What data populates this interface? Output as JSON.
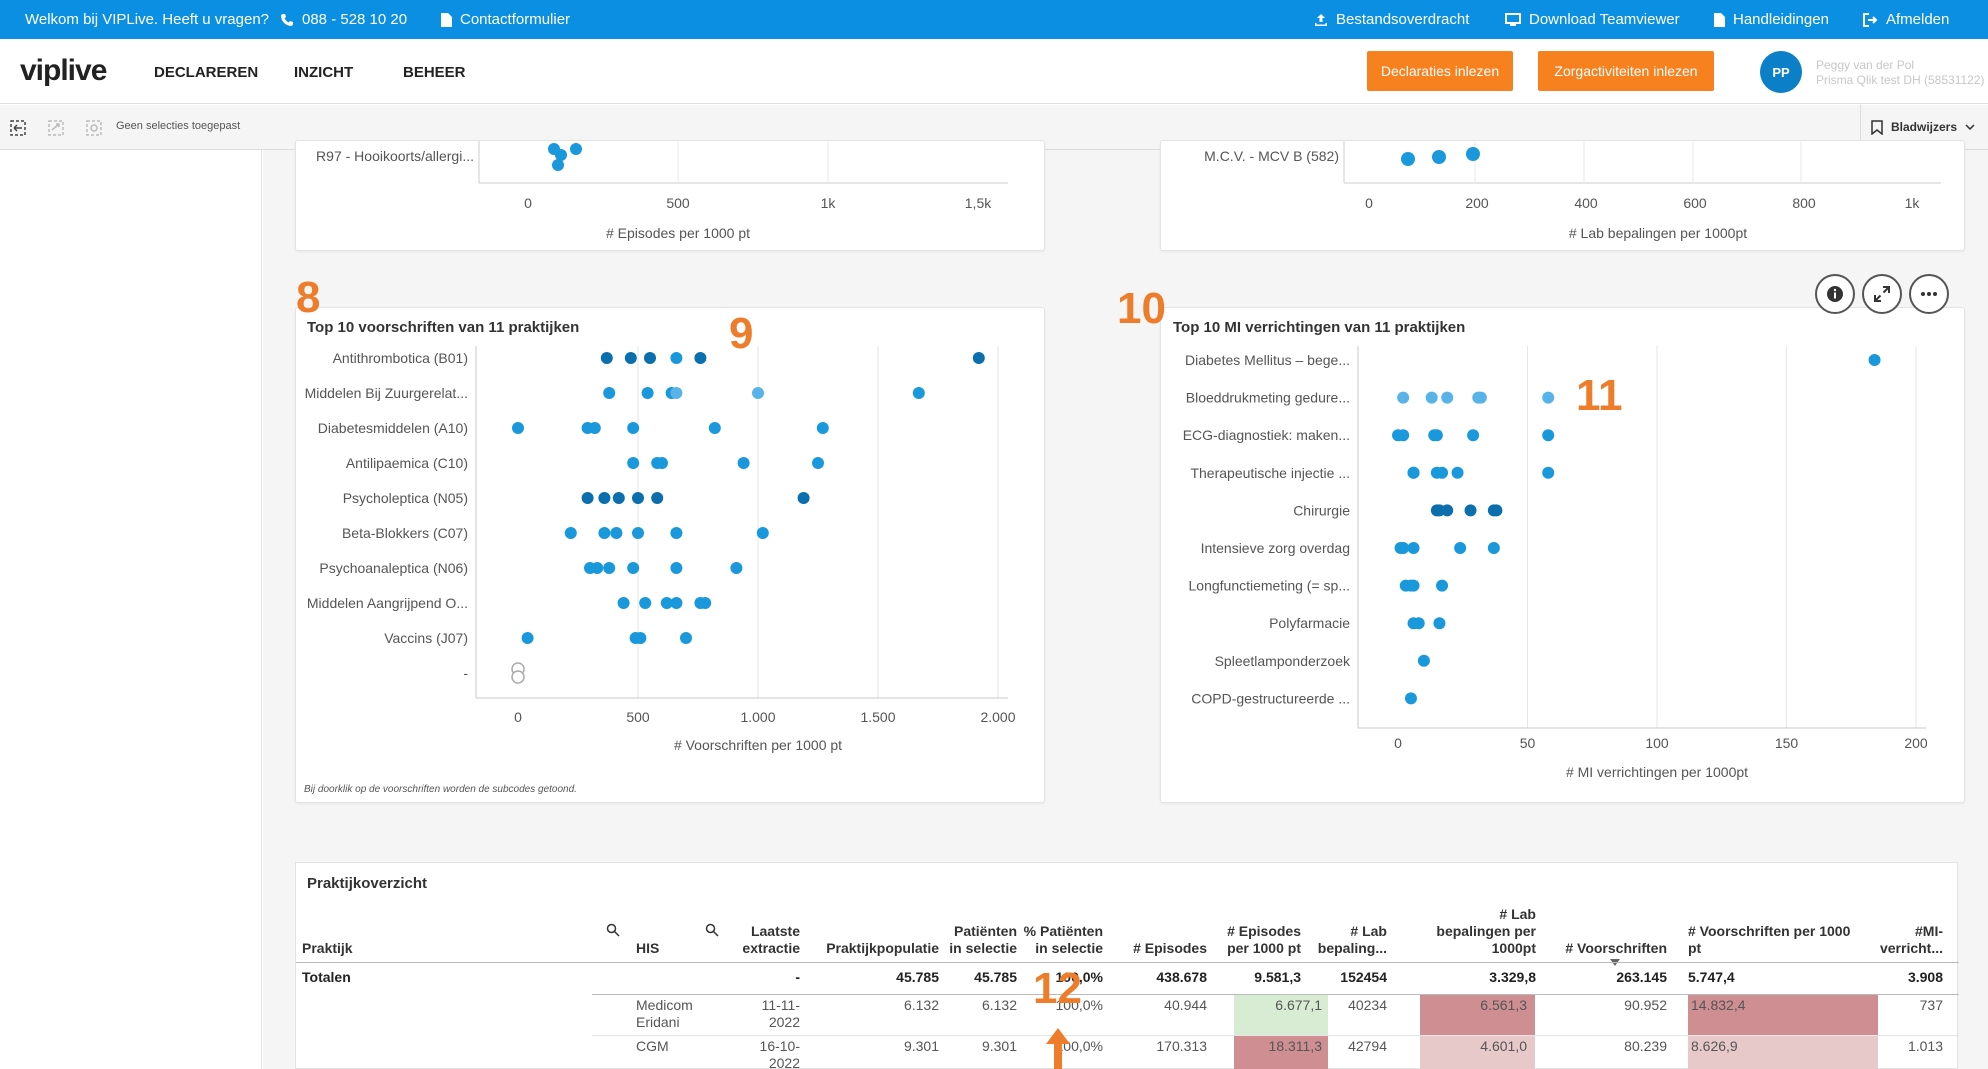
{
  "topbar": {
    "welcome": "Welkom bij VIPLive. Heeft u vragen?",
    "phone": "088 - 528 10 20",
    "contact": "Contactformulier",
    "transfer": "Bestandsoverdracht",
    "teamviewer": "Download Teamviewer",
    "manuals": "Handleidingen",
    "logout": "Afmelden"
  },
  "nav": {
    "logo": "viplive",
    "menu": [
      "DECLAREREN",
      "INZICHT",
      "BEHEER"
    ],
    "btn_declarations": "Declaraties inlezen",
    "btn_care": "Zorgactiviteiten inlezen",
    "avatar": "PP",
    "user_name": "Peggy van der Pol",
    "user_org": "Prisma Qlik test DH (58531122)"
  },
  "selections": {
    "none": "Geen selecties toegepast",
    "bookmarks": "Bladwijzers"
  },
  "colors": {
    "accent": "#0a8fe2",
    "orange": "#f7801f",
    "dot_dark": "#0b6fad",
    "dot_mid": "#1a98dc",
    "dot_light": "#58b4e8",
    "annotation": "#ee7d2b",
    "heat_red": "#cf8f92",
    "heat_red_light": "#e8c9ca",
    "heat_green": "#d8ecd4"
  },
  "annotations": [
    "8",
    "9",
    "10",
    "11",
    "12"
  ],
  "card_top_left": {
    "row_label": "R97 - Hooikoorts/allergi...",
    "ticks": [
      "0",
      "500",
      "1k",
      "1,5k"
    ],
    "xlabel": "# Episodes per 1000 pt"
  },
  "card_top_right": {
    "row_label": "M.C.V. - MCV B  (582)",
    "ticks": [
      "0",
      "200",
      "400",
      "600",
      "800",
      "1k"
    ],
    "xlabel": "# Lab bepalingen per 1000pt"
  },
  "chart_data": [
    {
      "type": "scatter",
      "title": "Top 10 voorschriften van 11 praktijken",
      "xlabel": "# Voorschriften per 1000 pt",
      "ylabel": "",
      "xlim": [
        0,
        2000
      ],
      "xticks": [
        "0",
        "500",
        "1.000",
        "1.500",
        "2.000"
      ],
      "categories": [
        "Antithrombotica (B01)",
        "Middelen Bij Zuurgerelat...",
        "Diabetesmiddelen (A10)",
        "Antilipaemica (C10)",
        "Psycholeptica (N05)",
        "Beta-Blokkers (C07)",
        "Psychoanaleptica (N06)",
        "Middelen Aangrijpend O...",
        "Vaccins (J07)",
        "-"
      ],
      "points": [
        [
          370,
          0,
          0
        ],
        [
          470,
          0,
          0
        ],
        [
          550,
          0,
          0
        ],
        [
          660,
          0,
          1
        ],
        [
          760,
          0,
          0
        ],
        [
          1920,
          0,
          0
        ],
        [
          380,
          1,
          1
        ],
        [
          540,
          1,
          1
        ],
        [
          640,
          1,
          1
        ],
        [
          660,
          1,
          2
        ],
        [
          1000,
          1,
          2
        ],
        [
          1670,
          1,
          1
        ],
        [
          0,
          2,
          1
        ],
        [
          290,
          2,
          1
        ],
        [
          320,
          2,
          1
        ],
        [
          480,
          2,
          1
        ],
        [
          820,
          2,
          1
        ],
        [
          1270,
          2,
          1
        ],
        [
          480,
          3,
          1
        ],
        [
          580,
          3,
          1
        ],
        [
          600,
          3,
          1
        ],
        [
          940,
          3,
          1
        ],
        [
          1250,
          3,
          1
        ],
        [
          290,
          4,
          0
        ],
        [
          360,
          4,
          0
        ],
        [
          420,
          4,
          0
        ],
        [
          500,
          4,
          0
        ],
        [
          580,
          4,
          0
        ],
        [
          1190,
          4,
          0
        ],
        [
          220,
          5,
          1
        ],
        [
          360,
          5,
          1
        ],
        [
          410,
          5,
          1
        ],
        [
          500,
          5,
          1
        ],
        [
          660,
          5,
          1
        ],
        [
          1020,
          5,
          1
        ],
        [
          300,
          6,
          1
        ],
        [
          330,
          6,
          1
        ],
        [
          380,
          6,
          1
        ],
        [
          480,
          6,
          1
        ],
        [
          660,
          6,
          1
        ],
        [
          910,
          6,
          1
        ],
        [
          440,
          7,
          1
        ],
        [
          530,
          7,
          1
        ],
        [
          620,
          7,
          1
        ],
        [
          660,
          7,
          1
        ],
        [
          760,
          7,
          1
        ],
        [
          780,
          7,
          1
        ],
        [
          40,
          8,
          1
        ],
        [
          490,
          8,
          1
        ],
        [
          510,
          8,
          1
        ],
        [
          700,
          8,
          1
        ],
        [
          0,
          9,
          3
        ]
      ],
      "footnote": "Bij doorklik op de voorschriften worden de subcodes getoond."
    },
    {
      "type": "scatter",
      "title": "Top 10 MI verrichtingen van 11 praktijken",
      "xlabel": "# MI verrichtingen per 1000pt",
      "ylabel": "",
      "xlim": [
        0,
        200
      ],
      "xticks": [
        "0",
        "50",
        "100",
        "150",
        "200"
      ],
      "categories": [
        "Diabetes Mellitus – bege...",
        "Bloeddrukmeting gedure...",
        "ECG-diagnostiek: maken...",
        "Therapeutische injectie ...",
        "Chirurgie",
        "Intensieve zorg overdag",
        "Longfunctiemeting (= sp...",
        "Polyfarmacie",
        "Spleetlamponderzoek",
        "COPD-gestructureerde ..."
      ],
      "points": [
        [
          184,
          0,
          1
        ],
        [
          2,
          1,
          2
        ],
        [
          13,
          1,
          2
        ],
        [
          19,
          1,
          2
        ],
        [
          31,
          1,
          2
        ],
        [
          32,
          1,
          2
        ],
        [
          58,
          1,
          2
        ],
        [
          0,
          2,
          1
        ],
        [
          2,
          2,
          1
        ],
        [
          14,
          2,
          1
        ],
        [
          15,
          2,
          1
        ],
        [
          29,
          2,
          1
        ],
        [
          58,
          2,
          1
        ],
        [
          6,
          3,
          1
        ],
        [
          6,
          3,
          1
        ],
        [
          15,
          3,
          1
        ],
        [
          17,
          3,
          1
        ],
        [
          23,
          3,
          1
        ],
        [
          58,
          3,
          1
        ],
        [
          15,
          4,
          0
        ],
        [
          16,
          4,
          0
        ],
        [
          19,
          4,
          0
        ],
        [
          28,
          4,
          0
        ],
        [
          37,
          4,
          0
        ],
        [
          38,
          4,
          0
        ],
        [
          1,
          5,
          1
        ],
        [
          2,
          5,
          1
        ],
        [
          6,
          5,
          1
        ],
        [
          24,
          5,
          1
        ],
        [
          37,
          5,
          1
        ],
        [
          3,
          6,
          1
        ],
        [
          5,
          6,
          1
        ],
        [
          6,
          6,
          1
        ],
        [
          17,
          6,
          1
        ],
        [
          6,
          7,
          1
        ],
        [
          8,
          7,
          1
        ],
        [
          16,
          7,
          1
        ],
        [
          10,
          8,
          1
        ],
        [
          5,
          9,
          1
        ]
      ]
    }
  ],
  "table": {
    "title": "Praktijkoverzicht",
    "headers": {
      "praktijk": "Praktijk",
      "his": "HIS",
      "laatste_l1": "Laatste",
      "laatste_l2": "extractie",
      "populatie": "Praktijkpopulatie",
      "patsel_l1": "Patiënten",
      "patsel_l2": "in selectie",
      "pctsel_l1": "% Patiënten",
      "pctsel_l2": "in selectie",
      "episodes": "# Episodes",
      "ep1000_l1": "# Episodes",
      "ep1000_l2": "per 1000 pt",
      "lab_l1": "# Lab",
      "lab_l2": "bepaling...",
      "lab1000_l1": "# Lab",
      "lab1000_l2": "bepalingen per",
      "lab1000_l3": "1000pt",
      "voorschriften": "# Voorschriften",
      "vs1000_l1": "# Voorschriften per 1000",
      "vs1000_l2": "pt",
      "mi_l1": "#MI-",
      "mi_l2": "verricht..."
    },
    "totals": {
      "label": "Totalen",
      "laatste": "-",
      "populatie": "45.785",
      "patsel": "45.785",
      "pctsel": "100,0%",
      "episodes": "438.678",
      "ep1000": "9.581,3",
      "lab": "152454",
      "lab1000": "3.329,8",
      "voorschriften": "263.145",
      "vs1000": "5.747,4",
      "mi": "3.908"
    },
    "rows": [
      {
        "his_l1": "Medicom",
        "his_l2": "Eridani",
        "date_l1": "11-11-",
        "date_l2": "2022",
        "populatie": "6.132",
        "patsel": "6.132",
        "pctsel": "100,0%",
        "episodes": "40.944",
        "ep1000": "6.677,1",
        "lab": "40234",
        "lab1000": "6.561,3",
        "voorschriften": "90.952",
        "vs1000": "14.832,4",
        "mi": "737"
      },
      {
        "his_l1": "CGM",
        "his_l2": "",
        "date_l1": "16-10-",
        "date_l2": "2022",
        "populatie": "9.301",
        "patsel": "9.301",
        "pctsel": "100,0%",
        "episodes": "170.313",
        "ep1000": "18.311,3",
        "lab": "42794",
        "lab1000": "4.601,0",
        "voorschriften": "80.239",
        "vs1000": "8.626,9",
        "mi": "1.013"
      }
    ]
  }
}
